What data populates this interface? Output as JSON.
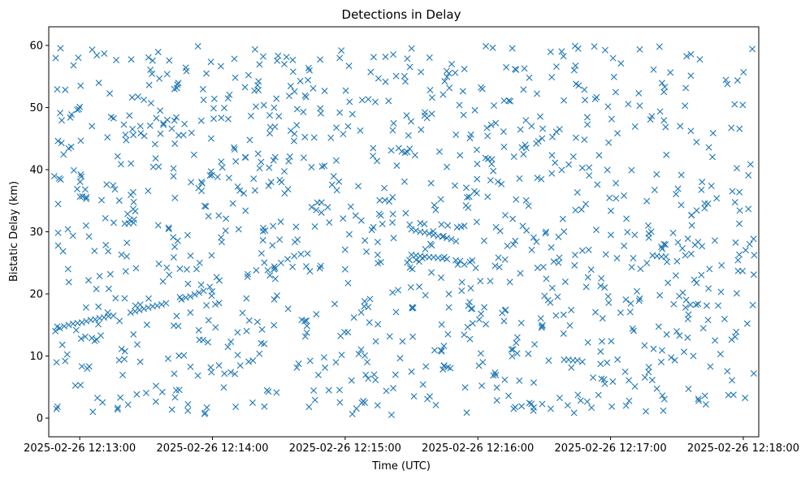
{
  "chart_data": {
    "type": "scatter",
    "title": "Detections in Delay",
    "xlabel": "Time (UTC)",
    "ylabel": "Bistatic Delay (km)",
    "marker": "x",
    "color": "#1f77b4",
    "grid": false,
    "x_unit": "seconds since 2025-02-26 12:13:00",
    "xlim": [
      -14,
      307
    ],
    "ylim": [
      -3,
      63
    ],
    "xticks": [
      {
        "value": 0,
        "label": "2025-02-26 12:13:00"
      },
      {
        "value": 60,
        "label": "2025-02-26 12:14:00"
      },
      {
        "value": 120,
        "label": "2025-02-26 12:15:00"
      },
      {
        "value": 180,
        "label": "2025-02-26 12:16:00"
      },
      {
        "value": 240,
        "label": "2025-02-26 12:17:00"
      },
      {
        "value": 300,
        "label": "2025-02-26 12:18:00"
      }
    ],
    "yticks": [
      {
        "value": 0,
        "label": "0"
      },
      {
        "value": 10,
        "label": "10"
      },
      {
        "value": 20,
        "label": "20"
      },
      {
        "value": 30,
        "label": "30"
      },
      {
        "value": 40,
        "label": "40"
      },
      {
        "value": 50,
        "label": "50"
      },
      {
        "value": 60,
        "label": "60"
      }
    ],
    "track_points": [
      {
        "x": -11,
        "y": 14.0
      },
      {
        "x": -9,
        "y": 14.5
      },
      {
        "x": -7,
        "y": 14.8
      },
      {
        "x": -5,
        "y": 15.0
      },
      {
        "x": -3,
        "y": 15.2
      },
      {
        "x": -1,
        "y": 15.3
      },
      {
        "x": 1,
        "y": 15.4
      },
      {
        "x": 3,
        "y": 15.6
      },
      {
        "x": 5,
        "y": 15.8
      },
      {
        "x": 7,
        "y": 15.9
      },
      {
        "x": 9,
        "y": 16.1
      },
      {
        "x": 11,
        "y": 16.2
      },
      {
        "x": 13,
        "y": 16.4
      },
      {
        "x": 23,
        "y": 17.0
      },
      {
        "x": 25,
        "y": 17.2
      },
      {
        "x": 27,
        "y": 17.4
      },
      {
        "x": 29,
        "y": 17.6
      },
      {
        "x": 31,
        "y": 17.8
      },
      {
        "x": 33,
        "y": 18.0
      },
      {
        "x": 35,
        "y": 18.1
      },
      {
        "x": 37,
        "y": 18.3
      },
      {
        "x": 39,
        "y": 18.5
      },
      {
        "x": 46,
        "y": 19.1
      },
      {
        "x": 48,
        "y": 19.4
      },
      {
        "x": 50,
        "y": 19.6
      },
      {
        "x": 52,
        "y": 19.9
      },
      {
        "x": 54,
        "y": 20.2
      },
      {
        "x": 56,
        "y": 20.5
      },
      {
        "x": 85,
        "y": 23.8
      },
      {
        "x": 88,
        "y": 24.4
      },
      {
        "x": 91,
        "y": 25.0
      },
      {
        "x": 94,
        "y": 25.6
      },
      {
        "x": 97,
        "y": 26.1
      },
      {
        "x": 100,
        "y": 26.4
      },
      {
        "x": 150,
        "y": 30.4
      },
      {
        "x": 152,
        "y": 30.2
      },
      {
        "x": 154,
        "y": 30.0
      },
      {
        "x": 156,
        "y": 29.9
      },
      {
        "x": 158,
        "y": 29.7
      },
      {
        "x": 160,
        "y": 29.5
      },
      {
        "x": 162,
        "y": 29.3
      },
      {
        "x": 164,
        "y": 29.2
      },
      {
        "x": 166,
        "y": 29.0
      },
      {
        "x": 168,
        "y": 28.8
      },
      {
        "x": 150,
        "y": 26.3
      },
      {
        "x": 152,
        "y": 26.2
      },
      {
        "x": 154,
        "y": 26.1
      },
      {
        "x": 156,
        "y": 26.0
      },
      {
        "x": 158,
        "y": 25.9
      },
      {
        "x": 160,
        "y": 25.9
      },
      {
        "x": 162,
        "y": 25.8
      },
      {
        "x": 164,
        "y": 25.7
      },
      {
        "x": 166,
        "y": 25.6
      },
      {
        "x": 170,
        "y": 25.4
      },
      {
        "x": 172,
        "y": 25.3
      },
      {
        "x": 259,
        "y": 26.2
      },
      {
        "x": 261,
        "y": 26.1
      },
      {
        "x": 263,
        "y": 26.0
      },
      {
        "x": 265,
        "y": 26.0
      },
      {
        "x": 219,
        "y": 9.4
      },
      {
        "x": 221,
        "y": 9.4
      },
      {
        "x": 223,
        "y": 9.3
      },
      {
        "x": 225,
        "y": 9.3
      }
    ],
    "random_points": {
      "count": 1100,
      "x_range": [
        -12,
        305
      ],
      "y_range": [
        0.5,
        60
      ],
      "note": "remaining detections are randomly distributed clutter across the full delay range"
    }
  }
}
